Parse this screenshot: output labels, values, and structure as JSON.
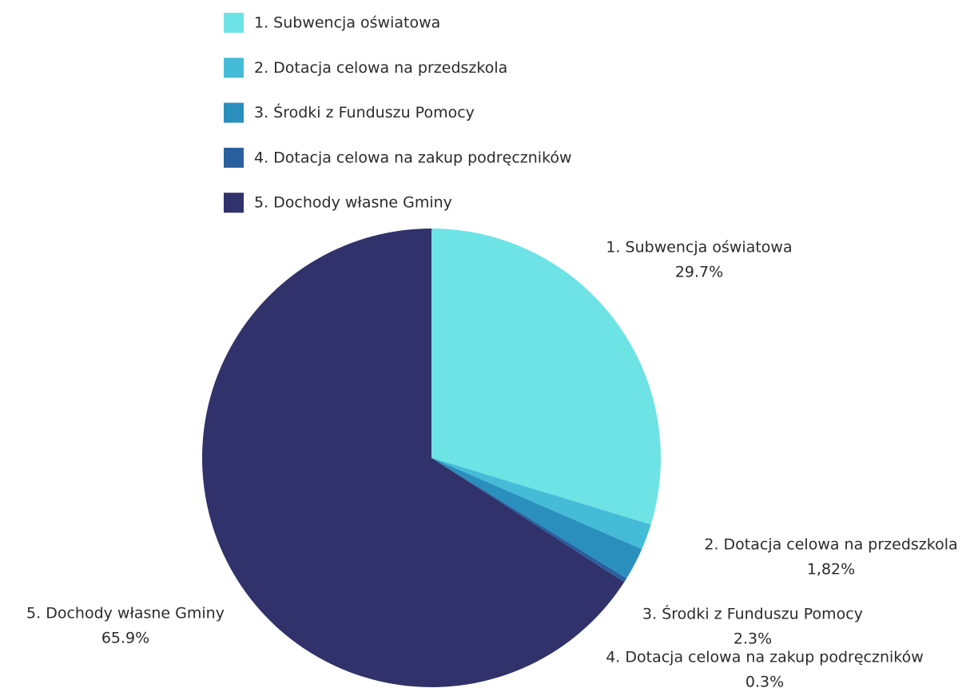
{
  "chart_data": {
    "type": "pie",
    "categories": [
      "1. Subwencja oświatowa",
      "2. Dotacja celowa na przedszkola",
      "3. Środki z Funduszu Pomocy",
      "4. Dotacja celowa na zakup podręczników",
      "5. Dochody własne Gminy"
    ],
    "values": [
      29.7,
      1.82,
      2.3,
      0.3,
      65.9
    ],
    "value_labels": [
      "29.7%",
      "1,82%",
      "2.3%",
      "0.3%",
      "65.9%"
    ],
    "colors": [
      "#6de3e6",
      "#44bcd8",
      "#2a8fbd",
      "#2a5f9e",
      "#31326b"
    ],
    "legend": "top"
  }
}
